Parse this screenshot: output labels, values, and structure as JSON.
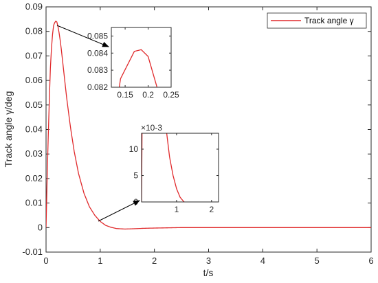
{
  "chart_data": {
    "type": "line",
    "xlabel": "t/s",
    "ylabel": "Track angle γ/deg",
    "xlim": [
      0,
      6
    ],
    "ylim": [
      -0.01,
      0.09
    ],
    "xticks": [
      "0",
      "1",
      "2",
      "3",
      "4",
      "5",
      "6"
    ],
    "yticks": [
      "-0.01",
      "0",
      "0.01",
      "0.02",
      "0.03",
      "0.04",
      "0.05",
      "0.06",
      "0.07",
      "0.08",
      "0.09"
    ],
    "grid": false,
    "legend": "top-right",
    "series": [
      {
        "name": "Track angle γ",
        "color": "#e0292b",
        "x": [
          0,
          0.02,
          0.05,
          0.08,
          0.11,
          0.14,
          0.17,
          0.185,
          0.2,
          0.23,
          0.27,
          0.32,
          0.38,
          0.45,
          0.52,
          0.6,
          0.7,
          0.8,
          0.9,
          1.0,
          1.1,
          1.2,
          1.3,
          1.45,
          1.6,
          1.8,
          2.0,
          2.5,
          3.0,
          4.0,
          5.0,
          6.0
        ],
        "y": [
          0,
          0.02,
          0.045,
          0.065,
          0.077,
          0.0825,
          0.0841,
          0.0842,
          0.0838,
          0.081,
          0.075,
          0.065,
          0.053,
          0.041,
          0.031,
          0.022,
          0.014,
          0.0085,
          0.005,
          0.0025,
          0.0009,
          0.0001,
          -0.0004,
          -0.0006,
          -0.0005,
          -0.0003,
          -0.0002,
          0,
          0,
          0,
          0,
          0
        ]
      }
    ],
    "insets": [
      {
        "xlim": [
          0.12,
          0.25
        ],
        "ylim": [
          0.082,
          0.0855
        ],
        "xticks": [
          "0.15",
          "0.2",
          "0.25"
        ],
        "yticks": [
          "0.082",
          "0.083",
          "0.084",
          "0.085"
        ]
      },
      {
        "xlim": [
          0,
          2.2
        ],
        "ylim": [
          0,
          0.013
        ],
        "xticks": [
          "1",
          "2"
        ],
        "yticks": [
          "0",
          "5",
          "10"
        ],
        "exponent": "×10-3"
      }
    ]
  }
}
